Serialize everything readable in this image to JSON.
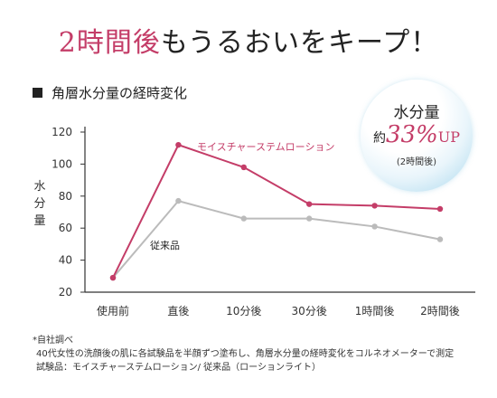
{
  "headline": {
    "accent": "2時間後",
    "rest": "もうるおいをキープ！"
  },
  "section_title": "角層水分量の経時変化",
  "badge": {
    "title": "水分量",
    "prefix": "約",
    "value": "33%",
    "unit": "UP",
    "note": "(2時間後)"
  },
  "colors": {
    "accent": "#c43d68",
    "gray_series": "#bbbbbb",
    "axis": "#333333",
    "bubble": "#bfe2f2"
  },
  "chart_data": {
    "type": "line",
    "categories": [
      "使用前",
      "直後",
      "10分後",
      "30分後",
      "1時間後",
      "2時間後"
    ],
    "series": [
      {
        "name": "モイスチャーステムローション",
        "values": [
          29,
          112,
          98,
          75,
          74,
          72
        ],
        "color": "#c43d68"
      },
      {
        "name": "従来品",
        "values": [
          29,
          77,
          66,
          66,
          61,
          53
        ],
        "color": "#bbbbbb"
      }
    ],
    "ylabel": "水分量",
    "ylim": [
      20,
      120
    ],
    "yticks": [
      20,
      40,
      60,
      80,
      100,
      120
    ],
    "grid": false
  },
  "footnotes": [
    "*自社調べ",
    "40代女性の洗顔後の肌に各試験品を半顔ずつ塗布し、角層水分量の経時変化をコルネオメーターで測定",
    "試験品：モイスチャーステムローション/ 従来品（ローションライト）"
  ]
}
